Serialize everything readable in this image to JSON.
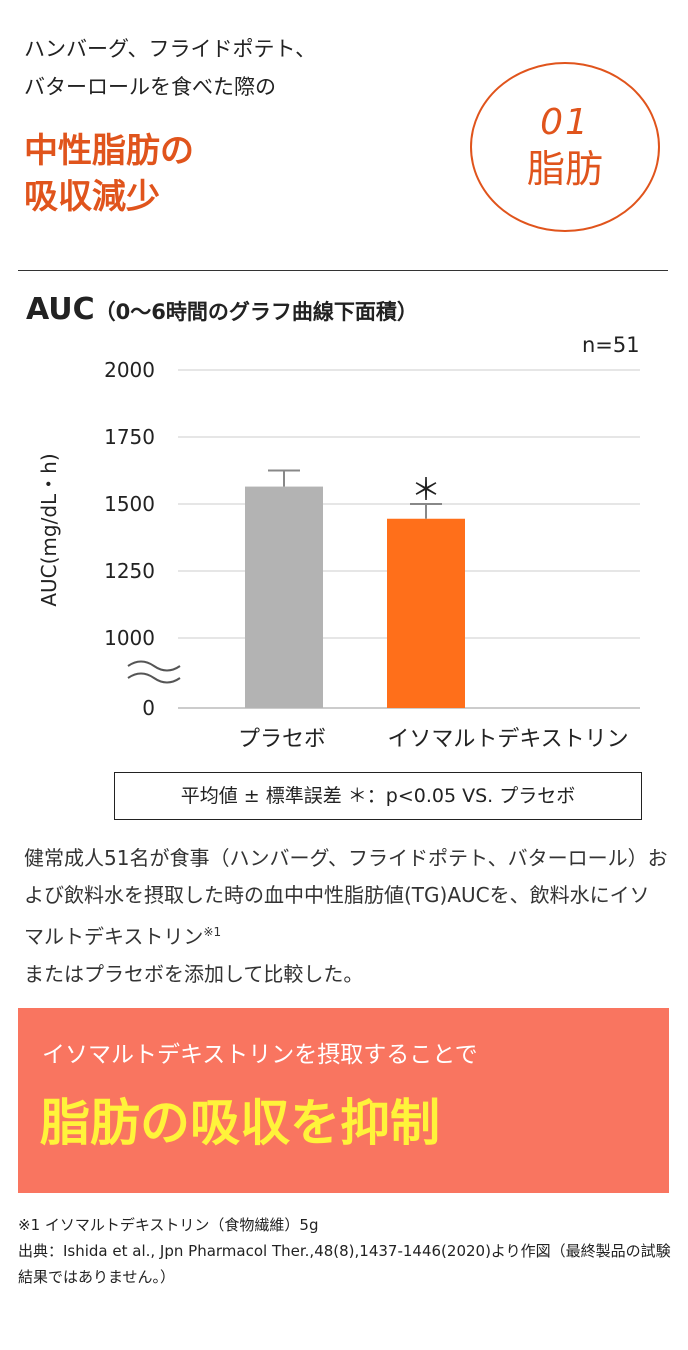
{
  "intro": {
    "line1": "ハンバーグ、フライドポテト、",
    "line2": "バターロールを食べた際の"
  },
  "headline": {
    "line1": "中性脂肪の",
    "line2": "吸収減少"
  },
  "badge": {
    "number": "01",
    "label": "脂肪"
  },
  "auc": {
    "main": "AUC",
    "sub": "（0〜6時間のグラフ曲線下面積）"
  },
  "n_label": "n=51",
  "chart_data": {
    "type": "bar",
    "ylabel": "AUC(mg/dL・h)",
    "y_ticks": [
      "2000",
      "1750",
      "1500",
      "1250",
      "1000",
      "0"
    ],
    "ylim": [
      1000,
      2000
    ],
    "axis_break": true,
    "categories": [
      "プラセボ",
      "イソマルトデキストリン"
    ],
    "values": [
      1565,
      1445
    ],
    "errors": [
      60,
      55
    ],
    "significance": [
      "",
      "＊"
    ],
    "colors": [
      "#b3b3b3",
      "#ff6f1a"
    ],
    "grid": true
  },
  "legend": "平均値 ± 標準誤差 ＊：p<0.05 VS. プラセボ",
  "desc": {
    "text": "健常成人51名が食事（ハンバーグ、フライドポテト、バターロール）および飲料水を摂取した時の血中中性脂肪値(TG)AUCを、飲料水にイソマルトデキストリン",
    "note_ref": "※1",
    "text2": "またはプラセボを添加して比較した。"
  },
  "banner": {
    "line1": "イソマルトデキストリンを摂取することで",
    "line2": "脂肪の吸収を抑制"
  },
  "notes": {
    "note1": "※1 イソマルトデキストリン（食物繊維）5g",
    "source": "出典：Ishida et al., Jpn Pharmacol Ther.,48(8),1437-1446(2020)より作図（最終製品の試験結果ではありません。）"
  }
}
